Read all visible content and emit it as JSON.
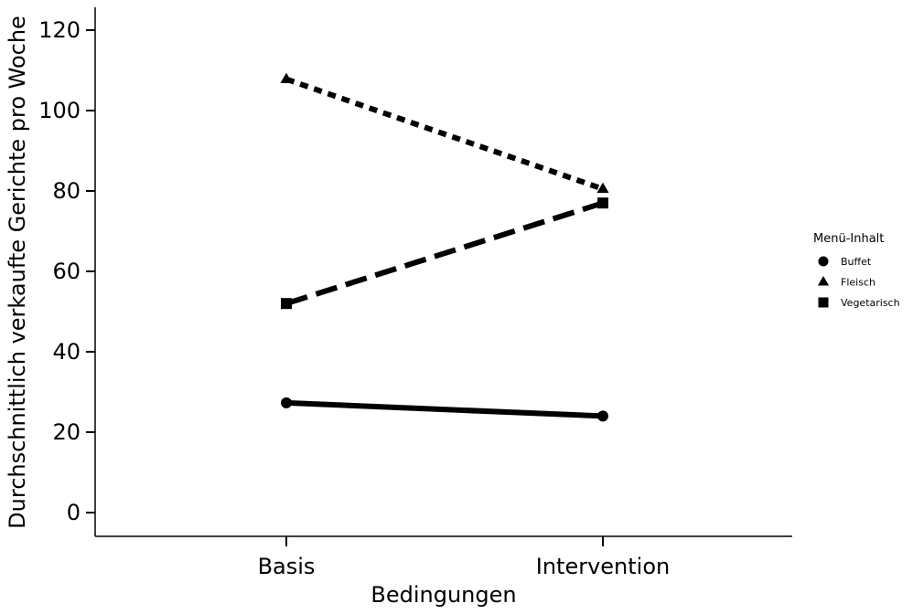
{
  "chart_data": {
    "type": "line",
    "xlabel": "Bedingungen",
    "ylabel": "Durchschnittlich verkaufte Gerichte pro Woche",
    "categories": [
      "Basis",
      "Intervention"
    ],
    "ylim": [
      -6,
      126
    ],
    "yticks": [
      0,
      20,
      40,
      60,
      80,
      100,
      120
    ],
    "grid": false,
    "legend": {
      "title": "Menü-Inhalt",
      "placement": "right"
    },
    "series": [
      {
        "name": "Buffet",
        "values": [
          27.3,
          24
        ],
        "marker": "circle",
        "line_style": "solid",
        "color": "#000000"
      },
      {
        "name": "Fleisch",
        "values": [
          107.8,
          80.5
        ],
        "marker": "triangle",
        "line_style": "dotted",
        "color": "#000000"
      },
      {
        "name": "Vegetarisch",
        "values": [
          52,
          77
        ],
        "marker": "square",
        "line_style": "dashed",
        "color": "#000000"
      }
    ]
  }
}
